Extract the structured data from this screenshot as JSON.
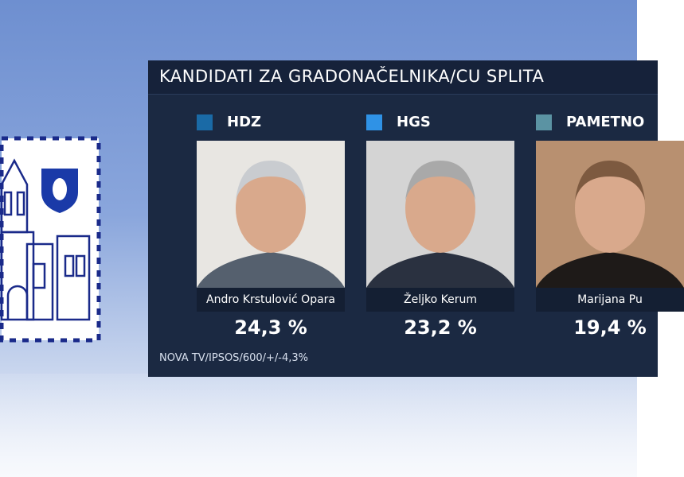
{
  "header": {
    "title": "KANDIDATI ZA GRADONAČELNIKA/CU SPLITA"
  },
  "candidates": [
    {
      "party": "HDZ",
      "color": "#1a6aa6",
      "name": "Andro Krstulović Opara",
      "result": "24,3 %"
    },
    {
      "party": "HGS",
      "color": "#2f92e6",
      "name": "Željko Kerum",
      "result": "23,2 %"
    },
    {
      "party": "PAMETNO",
      "color": "#5b93a3",
      "name": "Marijana Pu",
      "result": "19,4 %"
    }
  ],
  "footer": {
    "source": "NOVA TV/IPSOS/600/+/-4,3%"
  }
}
